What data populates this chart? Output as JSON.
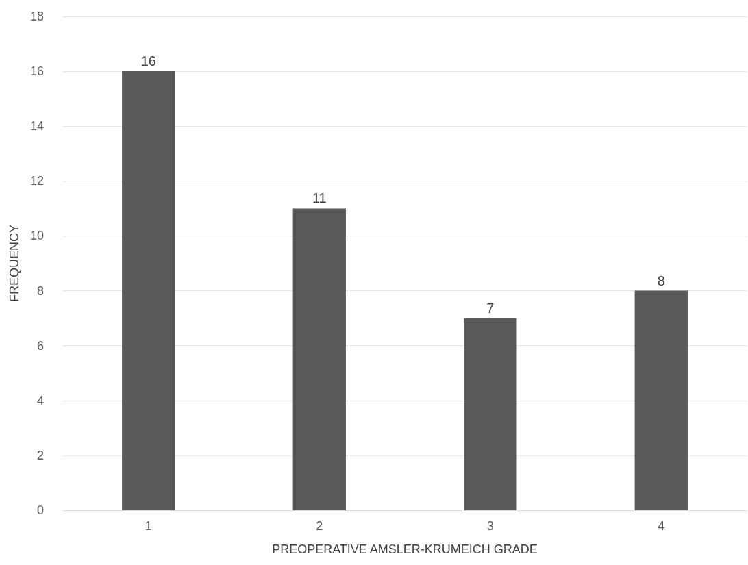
{
  "chart_data": {
    "type": "bar",
    "xlabel": "PREOPERATIVE AMSLER-KRUMEICH GRADE",
    "ylabel": "FREQUENCY",
    "categories": [
      "1",
      "2",
      "3",
      "4"
    ],
    "values": [
      16,
      11,
      7,
      8
    ],
    "color": "#595959",
    "ylim": [
      0,
      18
    ],
    "yticks": [
      0,
      2,
      4,
      6,
      8,
      10,
      12,
      14,
      16,
      18
    ],
    "grid": "y",
    "data_labels": true
  }
}
